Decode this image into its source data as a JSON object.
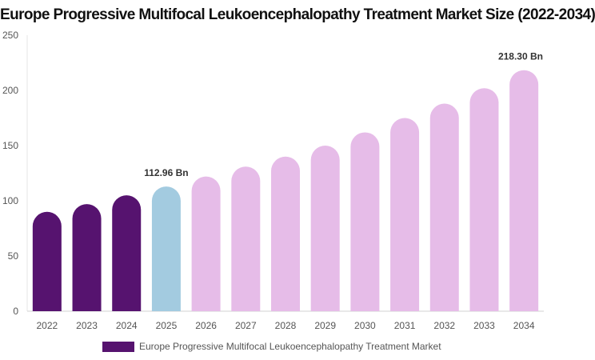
{
  "chart_data": {
    "type": "bar",
    "title": "Europe Progressive Multifocal Leukoencephalopathy Treatment Market Size (2022-2034)",
    "xlabel": "",
    "ylabel": "",
    "categories": [
      "2022",
      "2023",
      "2024",
      "2025",
      "2026",
      "2027",
      "2028",
      "2029",
      "2030",
      "2031",
      "2032",
      "2033",
      "2034"
    ],
    "series": [
      {
        "name": "Europe Progressive Multifocal Leukoencephalopathy Treatment Market",
        "values": [
          90,
          97,
          105,
          112.96,
          122,
          131,
          140,
          150,
          162,
          175,
          188,
          202,
          218.3
        ],
        "colors": [
          "#56136f",
          "#56136f",
          "#56136f",
          "#a3cbe0",
          "#e6bce8",
          "#e6bce8",
          "#e6bce8",
          "#e6bce8",
          "#e6bce8",
          "#e6bce8",
          "#e6bce8",
          "#e6bce8",
          "#e6bce8"
        ]
      }
    ],
    "ylim": [
      0,
      250
    ],
    "yticks": [
      0,
      50,
      100,
      150,
      200,
      250
    ],
    "data_labels": [
      {
        "index": 3,
        "text": "112.96 Bn"
      },
      {
        "index": 12,
        "text": "218.30 Bn"
      }
    ],
    "grid": false,
    "legend_position": "bottom"
  }
}
